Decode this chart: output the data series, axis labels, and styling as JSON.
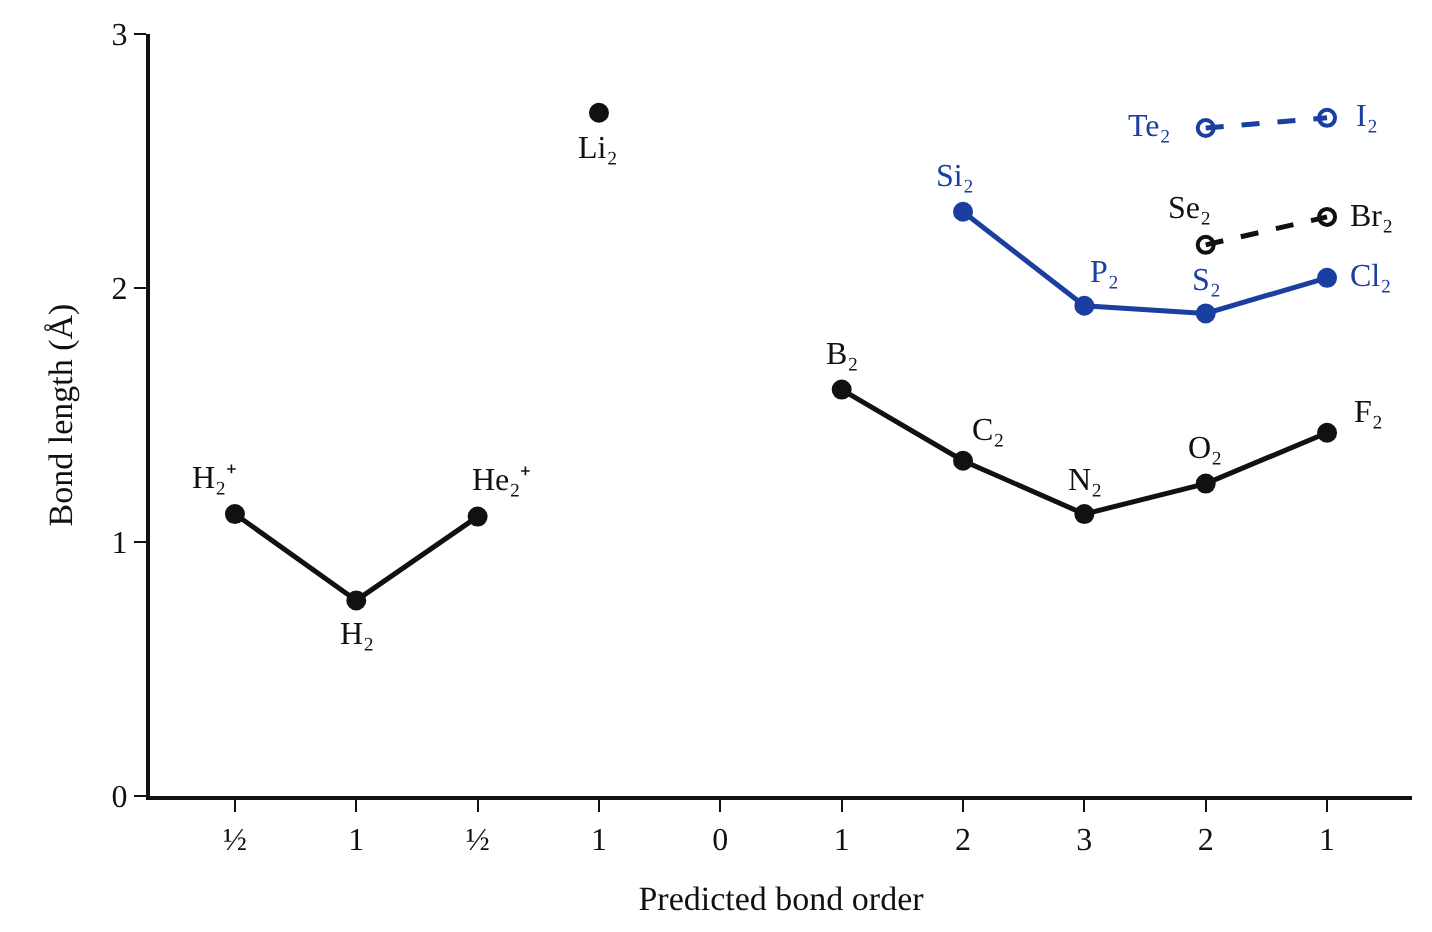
{
  "chart_data": {
    "type": "line",
    "xlabel": "Predicted bond order",
    "ylabel": "Bond length (Å)",
    "categories": [
      "½",
      "1",
      "½",
      "1",
      "0",
      "1",
      "2",
      "3",
      "2",
      "1"
    ],
    "ylim": [
      0,
      3
    ],
    "yticks": [
      0,
      1,
      2,
      3
    ],
    "marker": "circle",
    "series": [
      {
        "color": "#111111",
        "values": [
          1.11,
          0.77,
          1.1,
          null,
          null,
          null,
          null,
          null,
          null,
          null
        ],
        "line_style": "solid"
      },
      {
        "type": "scatter",
        "color": "#111111",
        "values": [
          null,
          null,
          null,
          2.69,
          null,
          null,
          null,
          null,
          null,
          null
        ]
      },
      {
        "color": "#111111",
        "values": [
          null,
          null,
          null,
          null,
          null,
          1.6,
          1.32,
          1.11,
          1.23,
          1.43
        ],
        "line_style": "solid"
      },
      {
        "color": "#1a3fa0",
        "values": [
          null,
          null,
          null,
          null,
          null,
          null,
          2.3,
          1.93,
          1.9,
          2.04
        ],
        "line_style": "solid"
      },
      {
        "color": "#111111",
        "values": [
          null,
          null,
          null,
          null,
          null,
          null,
          null,
          null,
          2.17,
          2.28
        ],
        "line_style": "dashed"
      },
      {
        "color": "#1a3fa0",
        "values": [
          null,
          null,
          null,
          null,
          null,
          null,
          null,
          null,
          2.63,
          2.67
        ],
        "line_style": "dashed"
      }
    ],
    "annotations": [
      "H₂⁺",
      "H₂",
      "He₂⁺",
      "Li₂",
      "B₂",
      "C₂",
      "N₂",
      "O₂",
      "F₂",
      "Si₂",
      "P₂",
      "S₂",
      "Cl₂",
      "Se₂",
      "Br₂",
      "Te₂",
      "I₂"
    ]
  }
}
